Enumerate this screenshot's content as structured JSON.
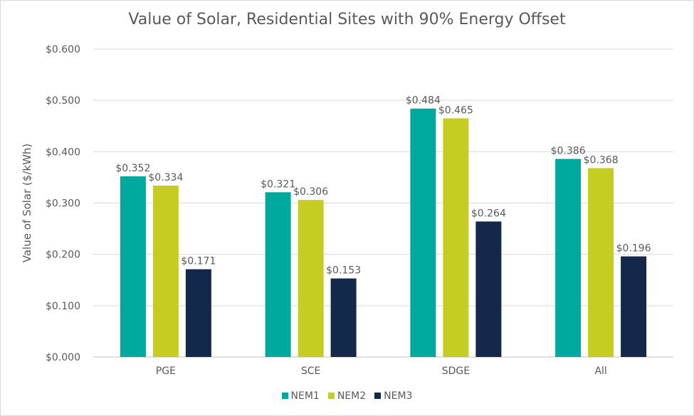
{
  "chart_data": {
    "type": "bar",
    "title": "Value of Solar, Residential Sites with 90% Energy Offset",
    "xlabel": "",
    "ylabel": "Value of Solar ($/kWh)",
    "ylim": [
      0,
      0.6
    ],
    "yticks": [
      "$0.000",
      "$0.100",
      "$0.200",
      "$0.300",
      "$0.400",
      "$0.500",
      "$0.600"
    ],
    "grid": true,
    "legend": "bottom",
    "categories": [
      "PGE",
      "SCE",
      "SDGE",
      "All"
    ],
    "series": [
      {
        "name": "NEM1",
        "color": "#00A99D",
        "values": [
          0.352,
          0.321,
          0.484,
          0.386
        ],
        "labels": [
          "$0.352",
          "$0.321",
          "$0.484",
          "$0.386"
        ]
      },
      {
        "name": "NEM2",
        "color": "#C5CD22",
        "values": [
          0.334,
          0.306,
          0.465,
          0.368
        ],
        "labels": [
          "$0.334",
          "$0.306",
          "$0.465",
          "$0.368"
        ]
      },
      {
        "name": "NEM3",
        "color": "#13284A",
        "values": [
          0.171,
          0.153,
          0.264,
          0.196
        ],
        "labels": [
          "$0.171",
          "$0.153",
          "$0.264",
          "$0.196"
        ]
      }
    ]
  }
}
